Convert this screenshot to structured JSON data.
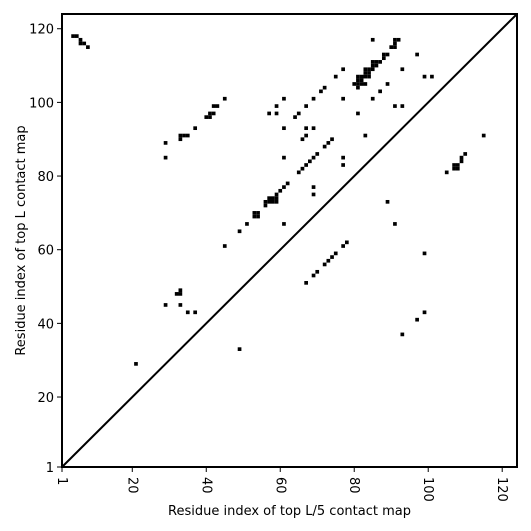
{
  "chart_data": {
    "type": "scatter",
    "xlabel": "Residue index of top L/5 contact map",
    "ylabel": "Residue index of top L contact map",
    "xlim": [
      1,
      124
    ],
    "ylim": [
      1,
      124
    ],
    "x_ticks": [
      1,
      20,
      40,
      60,
      80,
      100,
      120
    ],
    "y_ticks": [
      1,
      20,
      40,
      60,
      80,
      100,
      120
    ],
    "diagonal": true,
    "marker": "square",
    "color": "#000000",
    "points": [
      [
        4,
        118
      ],
      [
        5,
        118
      ],
      [
        6,
        117
      ],
      [
        6,
        116
      ],
      [
        7,
        116
      ],
      [
        8,
        115
      ],
      [
        45,
        101
      ],
      [
        42,
        99
      ],
      [
        43,
        99
      ],
      [
        41,
        97
      ],
      [
        42,
        97
      ],
      [
        41,
        96
      ],
      [
        40,
        96
      ],
      [
        37,
        93
      ],
      [
        33,
        91
      ],
      [
        34,
        91
      ],
      [
        35,
        91
      ],
      [
        33,
        90
      ],
      [
        29,
        89
      ],
      [
        29,
        85
      ],
      [
        45,
        61
      ],
      [
        49,
        65
      ],
      [
        51,
        67
      ],
      [
        53,
        70
      ],
      [
        54,
        70
      ],
      [
        54,
        69
      ],
      [
        53,
        69
      ],
      [
        56,
        73
      ],
      [
        56,
        72
      ],
      [
        57,
        74
      ],
      [
        57,
        73
      ],
      [
        58,
        74
      ],
      [
        58,
        73
      ],
      [
        59,
        74
      ],
      [
        59,
        73
      ],
      [
        59,
        75
      ],
      [
        60,
        76
      ],
      [
        61,
        77
      ],
      [
        62,
        78
      ],
      [
        21,
        29
      ],
      [
        29,
        45
      ],
      [
        32,
        48
      ],
      [
        33,
        48
      ],
      [
        33,
        49
      ],
      [
        33,
        45
      ],
      [
        35,
        43
      ],
      [
        37,
        43
      ],
      [
        49,
        33
      ],
      [
        57,
        97
      ],
      [
        59,
        97
      ],
      [
        59,
        99
      ],
      [
        61,
        101
      ],
      [
        61,
        93
      ],
      [
        61,
        85
      ],
      [
        61,
        67
      ],
      [
        64,
        96
      ],
      [
        65,
        97
      ],
      [
        66,
        90
      ],
      [
        67,
        91
      ],
      [
        67,
        93
      ],
      [
        67,
        99
      ],
      [
        69,
        93
      ],
      [
        69,
        101
      ],
      [
        70,
        86
      ],
      [
        71,
        103
      ],
      [
        72,
        104
      ],
      [
        72,
        88
      ],
      [
        73,
        89
      ],
      [
        74,
        90
      ],
      [
        75,
        107
      ],
      [
        77,
        109
      ],
      [
        77,
        101
      ],
      [
        77,
        85
      ],
      [
        77,
        83
      ],
      [
        65,
        81
      ],
      [
        66,
        82
      ],
      [
        67,
        83
      ],
      [
        68,
        84
      ],
      [
        69,
        85
      ],
      [
        69,
        77
      ],
      [
        69,
        75
      ],
      [
        67,
        51
      ],
      [
        69,
        53
      ],
      [
        70,
        54
      ],
      [
        72,
        56
      ],
      [
        73,
        57
      ],
      [
        74,
        58
      ],
      [
        75,
        59
      ],
      [
        77,
        61
      ],
      [
        78,
        62
      ],
      [
        80,
        105
      ],
      [
        81,
        105
      ],
      [
        81,
        104
      ],
      [
        81,
        106
      ],
      [
        81,
        107
      ],
      [
        82,
        106
      ],
      [
        82,
        107
      ],
      [
        82,
        105
      ],
      [
        83,
        105
      ],
      [
        83,
        107
      ],
      [
        83,
        108
      ],
      [
        83,
        109
      ],
      [
        84,
        107
      ],
      [
        84,
        108
      ],
      [
        84,
        109
      ],
      [
        85,
        109
      ],
      [
        85,
        110
      ],
      [
        85,
        111
      ],
      [
        86,
        110
      ],
      [
        86,
        111
      ],
      [
        87,
        111
      ],
      [
        88,
        112
      ],
      [
        88,
        113
      ],
      [
        89,
        113
      ],
      [
        90,
        115
      ],
      [
        91,
        115
      ],
      [
        91,
        116
      ],
      [
        91,
        117
      ],
      [
        92,
        117
      ],
      [
        85,
        117
      ],
      [
        81,
        97
      ],
      [
        83,
        91
      ],
      [
        85,
        101
      ],
      [
        87,
        103
      ],
      [
        89,
        105
      ],
      [
        91,
        99
      ],
      [
        93,
        99
      ],
      [
        93,
        109
      ],
      [
        97,
        113
      ],
      [
        99,
        107
      ],
      [
        101,
        107
      ],
      [
        89,
        73
      ],
      [
        91,
        67
      ],
      [
        93,
        37
      ],
      [
        97,
        41
      ],
      [
        99,
        43
      ],
      [
        99,
        59
      ],
      [
        105,
        81
      ],
      [
        107,
        82
      ],
      [
        107,
        83
      ],
      [
        108,
        83
      ],
      [
        108,
        82
      ],
      [
        109,
        84
      ],
      [
        109,
        85
      ],
      [
        110,
        86
      ],
      [
        115,
        91
      ]
    ]
  }
}
